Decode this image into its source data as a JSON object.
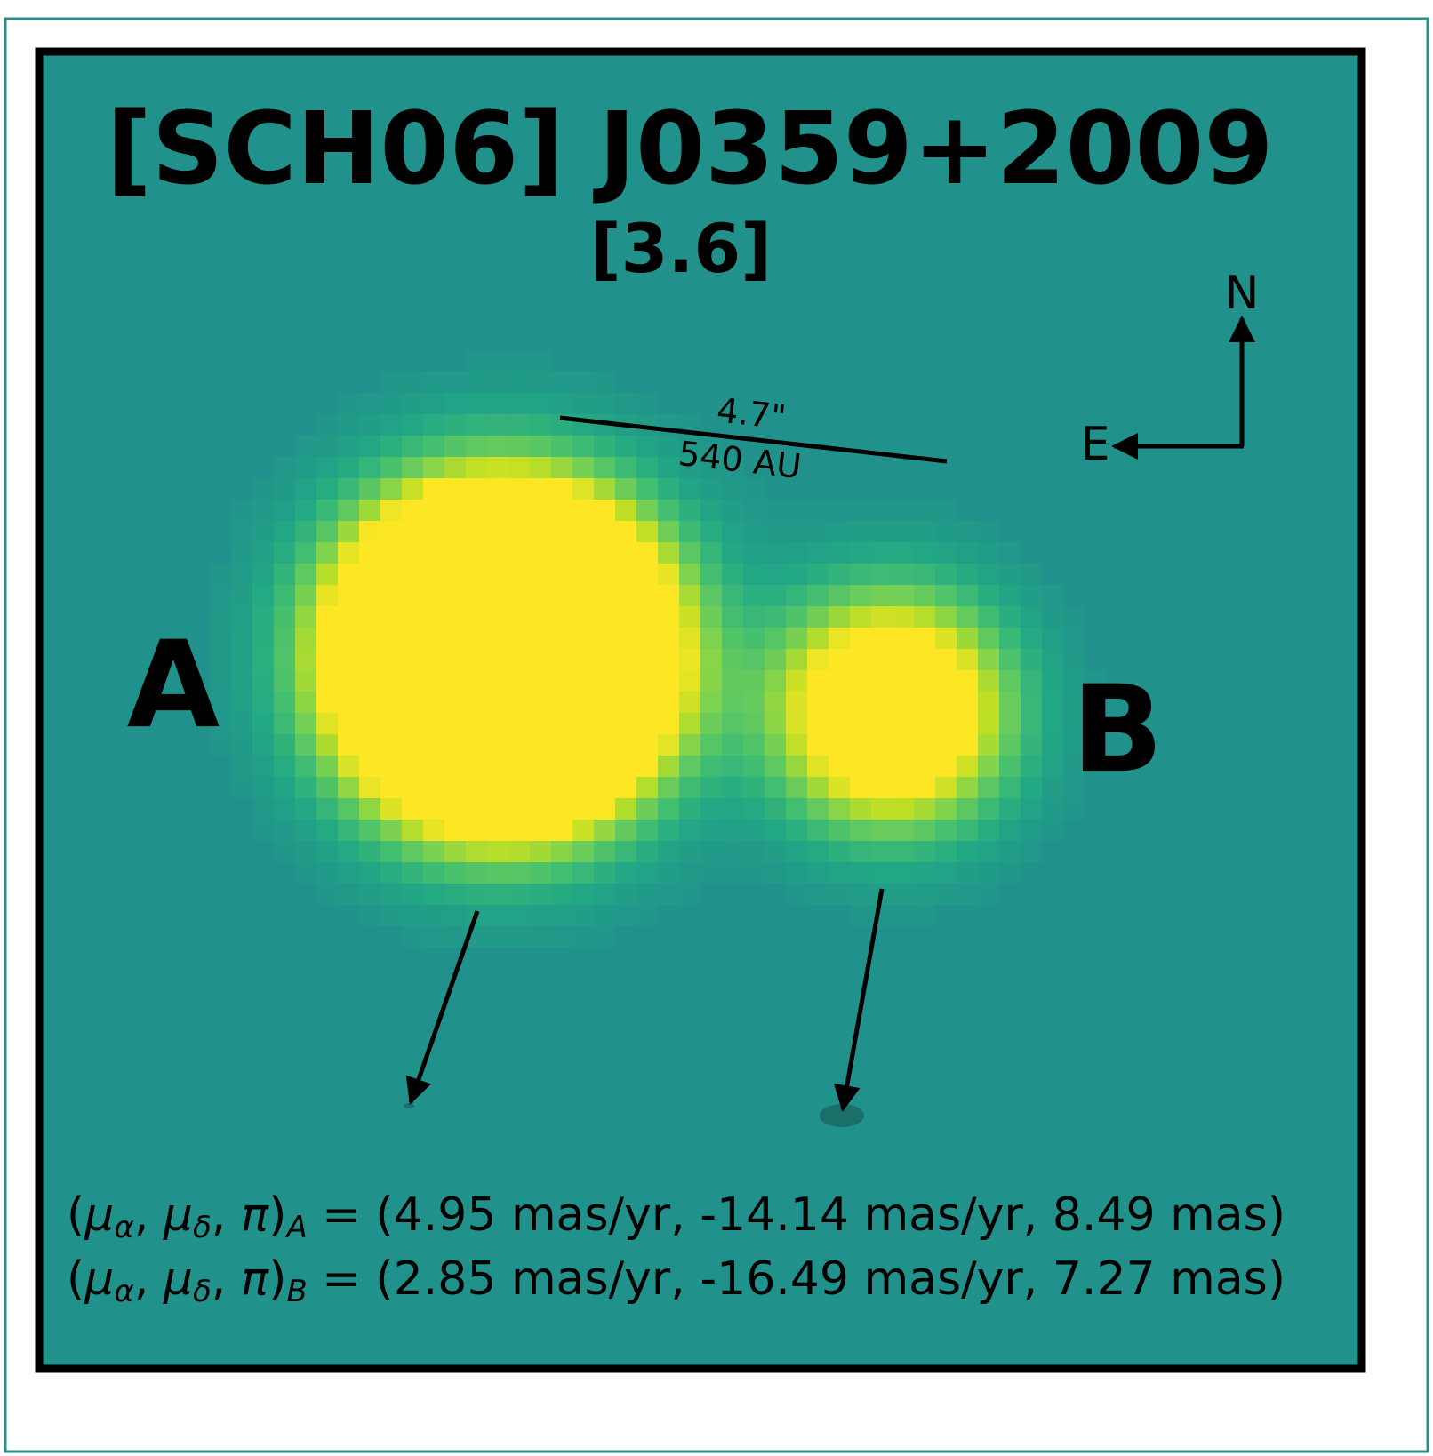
{
  "title": "[SCH06] J0359+2009",
  "subtitle": "[3.6]",
  "components": {
    "a": "A",
    "b": "B"
  },
  "scale_bar": {
    "angle": "4.7\"",
    "distance": "540 AU"
  },
  "compass": {
    "north": "N",
    "east": "E"
  },
  "equations": [
    {
      "lhs": [
        "(",
        "μ",
        "α",
        ", ",
        "μ",
        "δ",
        ", ",
        "π",
        ")",
        "A"
      ],
      "rhs": " = (4.95 mas/yr, -14.14 mas/yr, 8.49 mas)"
    },
    {
      "lhs": [
        "(",
        "μ",
        "α",
        ", ",
        "μ",
        "δ",
        ", ",
        "π",
        ")",
        "B"
      ],
      "rhs": " = (2.85 mas/yr, -16.49 mas/yr, 7.27 mas)"
    }
  ]
}
